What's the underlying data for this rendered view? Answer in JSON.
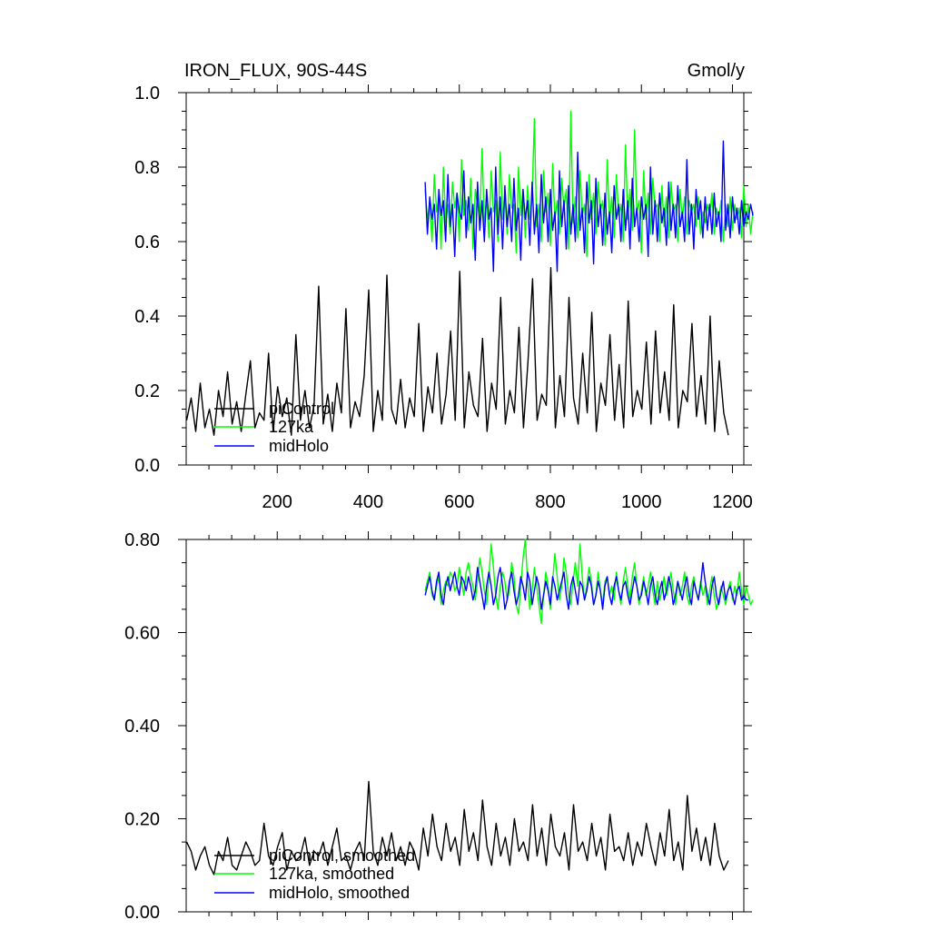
{
  "figure": {
    "title_left": "IRON_FLUX, 90S-44S",
    "title_right": "Gmol/y"
  },
  "chart_data": [
    {
      "type": "line",
      "title": "IRON_FLUX, 90S-44S",
      "units": "Gmol/y",
      "xlim": [
        0,
        1225
      ],
      "ylim": [
        0.0,
        1.0
      ],
      "xticks": [
        200,
        400,
        600,
        800,
        1000,
        1200
      ],
      "xtick_labels": [
        "200",
        "400",
        "600",
        "800",
        "1000",
        "1200"
      ],
      "yticks": [
        0.0,
        0.2,
        0.4,
        0.6,
        0.8,
        1.0
      ],
      "ytick_labels": [
        "0.0",
        "0.2",
        "0.4",
        "0.6",
        "0.8",
        "1.0"
      ],
      "legend": [
        "piControl",
        "127ka",
        "midHolo"
      ],
      "legend_position": "lower-left",
      "series": [
        {
          "name": "piControl",
          "color": "#000000",
          "x_start": 1,
          "x_step": 10,
          "values": [
            0.12,
            0.18,
            0.09,
            0.22,
            0.1,
            0.15,
            0.08,
            0.2,
            0.13,
            0.25,
            0.11,
            0.17,
            0.09,
            0.19,
            0.28,
            0.1,
            0.14,
            0.12,
            0.3,
            0.09,
            0.21,
            0.13,
            0.18,
            0.08,
            0.35,
            0.12,
            0.2,
            0.1,
            0.16,
            0.48,
            0.11,
            0.19,
            0.09,
            0.22,
            0.14,
            0.42,
            0.1,
            0.17,
            0.13,
            0.24,
            0.47,
            0.09,
            0.2,
            0.12,
            0.51,
            0.15,
            0.11,
            0.23,
            0.1,
            0.18,
            0.13,
            0.38,
            0.09,
            0.21,
            0.14,
            0.3,
            0.11,
            0.19,
            0.36,
            0.12,
            0.52,
            0.1,
            0.25,
            0.16,
            0.13,
            0.34,
            0.09,
            0.22,
            0.15,
            0.45,
            0.11,
            0.2,
            0.14,
            0.37,
            0.1,
            0.28,
            0.5,
            0.12,
            0.19,
            0.16,
            0.53,
            0.1,
            0.24,
            0.13,
            0.45,
            0.18,
            0.11,
            0.3,
            0.14,
            0.41,
            0.09,
            0.22,
            0.16,
            0.35,
            0.12,
            0.27,
            0.1,
            0.44,
            0.13,
            0.2,
            0.15,
            0.33,
            0.11,
            0.36,
            0.14,
            0.25,
            0.12,
            0.43,
            0.1,
            0.2,
            0.17,
            0.38,
            0.13,
            0.24,
            0.11,
            0.4,
            0.09,
            0.28,
            0.14,
            0.08
          ]
        },
        {
          "name": "127ka",
          "color": "#00ff00",
          "x_start": 525,
          "x_step": 5,
          "values": [
            0.74,
            0.66,
            0.7,
            0.6,
            0.78,
            0.68,
            0.72,
            0.58,
            0.8,
            0.65,
            0.7,
            0.62,
            0.76,
            0.69,
            0.73,
            0.6,
            0.82,
            0.67,
            0.71,
            0.63,
            0.77,
            0.58,
            0.74,
            0.7,
            0.66,
            0.85,
            0.64,
            0.72,
            0.61,
            0.79,
            0.68,
            0.71,
            0.6,
            0.84,
            0.66,
            0.73,
            0.62,
            0.78,
            0.69,
            0.7,
            0.57,
            0.8,
            0.67,
            0.74,
            0.61,
            0.75,
            0.66,
            0.72,
            0.93,
            0.64,
            0.7,
            0.6,
            0.79,
            0.68,
            0.73,
            0.59,
            0.81,
            0.66,
            0.71,
            0.62,
            0.77,
            0.69,
            0.74,
            0.58,
            0.95,
            0.65,
            0.72,
            0.61,
            0.79,
            0.67,
            0.7,
            0.56,
            0.78,
            0.66,
            0.73,
            0.62,
            0.76,
            0.68,
            0.71,
            0.59,
            0.82,
            0.65,
            0.72,
            0.61,
            0.78,
            0.67,
            0.7,
            0.6,
            0.86,
            0.66,
            0.74,
            0.63,
            0.9,
            0.68,
            0.71,
            0.57,
            0.79,
            0.66,
            0.73,
            0.62,
            0.77,
            0.69,
            0.7,
            0.6,
            0.75,
            0.64,
            0.72,
            0.61,
            0.76,
            0.68,
            0.7,
            0.6,
            0.74,
            0.66,
            0.72,
            0.62,
            0.71,
            0.68,
            0.7,
            0.64,
            0.72,
            0.62,
            0.68,
            0.65,
            0.7,
            0.67,
            0.73,
            0.62,
            0.69,
            0.66,
            0.71,
            0.6,
            0.7,
            0.64,
            0.72,
            0.63,
            0.7,
            0.66,
            0.69,
            0.61,
            0.75,
            0.64,
            0.7,
            0.62,
            0.68
          ]
        },
        {
          "name": "midHolo",
          "color": "#0000ff",
          "x_start": 525,
          "x_step": 5,
          "values": [
            0.76,
            0.62,
            0.72,
            0.66,
            0.7,
            0.58,
            0.74,
            0.67,
            0.71,
            0.6,
            0.78,
            0.64,
            0.7,
            0.56,
            0.73,
            0.68,
            0.66,
            0.79,
            0.61,
            0.72,
            0.65,
            0.7,
            0.55,
            0.76,
            0.63,
            0.71,
            0.6,
            0.74,
            0.66,
            0.69,
            0.52,
            0.8,
            0.62,
            0.72,
            0.58,
            0.75,
            0.64,
            0.7,
            0.6,
            0.77,
            0.63,
            0.69,
            0.55,
            0.74,
            0.66,
            0.71,
            0.59,
            0.76,
            0.62,
            0.7,
            0.57,
            0.78,
            0.65,
            0.72,
            0.6,
            0.74,
            0.63,
            0.68,
            0.52,
            0.79,
            0.64,
            0.71,
            0.58,
            0.75,
            0.62,
            0.7,
            0.6,
            0.84,
            0.63,
            0.69,
            0.57,
            0.76,
            0.65,
            0.71,
            0.54,
            0.77,
            0.64,
            0.7,
            0.59,
            0.73,
            0.62,
            0.68,
            0.57,
            0.75,
            0.66,
            0.7,
            0.6,
            0.74,
            0.63,
            0.71,
            0.58,
            0.77,
            0.64,
            0.69,
            0.6,
            0.72,
            0.66,
            0.7,
            0.56,
            0.8,
            0.62,
            0.71,
            0.6,
            0.73,
            0.65,
            0.69,
            0.59,
            0.76,
            0.63,
            0.7,
            0.61,
            0.75,
            0.64,
            0.68,
            0.6,
            0.82,
            0.62,
            0.7,
            0.58,
            0.74,
            0.66,
            0.71,
            0.61,
            0.72,
            0.63,
            0.7,
            0.62,
            0.73,
            0.64,
            0.68,
            0.6,
            0.87,
            0.63,
            0.7,
            0.61,
            0.72,
            0.65,
            0.69,
            0.62,
            0.71,
            0.64,
            0.68,
            0.66,
            0.7,
            0.67
          ]
        }
      ]
    },
    {
      "type": "line",
      "xlim": [
        0,
        1225
      ],
      "ylim": [
        0.0,
        0.8
      ],
      "xticks": [
        200,
        400,
        600,
        800,
        1000,
        1200
      ],
      "yticks": [
        0.0,
        0.2,
        0.4,
        0.6,
        0.8
      ],
      "ytick_labels": [
        "0.00",
        "0.20",
        "0.40",
        "0.60",
        "0.80"
      ],
      "legend": [
        "piControl, smoothed",
        "127ka, smoothed",
        "midHolo, smoothed"
      ],
      "legend_position": "lower-left",
      "series": [
        {
          "name": "piControl, smoothed",
          "color": "#000000",
          "x_start": 1,
          "x_step": 10,
          "values": [
            0.15,
            0.13,
            0.09,
            0.12,
            0.14,
            0.1,
            0.08,
            0.13,
            0.11,
            0.16,
            0.1,
            0.09,
            0.12,
            0.15,
            0.13,
            0.1,
            0.11,
            0.19,
            0.12,
            0.1,
            0.14,
            0.17,
            0.09,
            0.13,
            0.11,
            0.12,
            0.16,
            0.1,
            0.13,
            0.12,
            0.15,
            0.1,
            0.14,
            0.18,
            0.11,
            0.12,
            0.09,
            0.13,
            0.15,
            0.11,
            0.28,
            0.13,
            0.1,
            0.16,
            0.12,
            0.17,
            0.11,
            0.14,
            0.1,
            0.15,
            0.13,
            0.09,
            0.18,
            0.12,
            0.21,
            0.14,
            0.11,
            0.19,
            0.13,
            0.16,
            0.1,
            0.22,
            0.13,
            0.17,
            0.11,
            0.24,
            0.14,
            0.1,
            0.19,
            0.12,
            0.16,
            0.1,
            0.2,
            0.13,
            0.15,
            0.11,
            0.23,
            0.12,
            0.18,
            0.1,
            0.21,
            0.14,
            0.12,
            0.17,
            0.09,
            0.23,
            0.13,
            0.15,
            0.11,
            0.19,
            0.12,
            0.16,
            0.09,
            0.21,
            0.13,
            0.14,
            0.11,
            0.17,
            0.1,
            0.15,
            0.12,
            0.19,
            0.14,
            0.1,
            0.17,
            0.12,
            0.22,
            0.11,
            0.15,
            0.09,
            0.25,
            0.13,
            0.18,
            0.11,
            0.16,
            0.1,
            0.19,
            0.12,
            0.09,
            0.11
          ]
        },
        {
          "name": "127ka, smoothed",
          "color": "#00ff00",
          "x_start": 525,
          "x_step": 5,
          "values": [
            0.69,
            0.71,
            0.73,
            0.68,
            0.67,
            0.7,
            0.72,
            0.66,
            0.69,
            0.71,
            0.7,
            0.73,
            0.72,
            0.69,
            0.7,
            0.74,
            0.71,
            0.68,
            0.73,
            0.75,
            0.72,
            0.7,
            0.67,
            0.71,
            0.76,
            0.73,
            0.69,
            0.66,
            0.72,
            0.79,
            0.74,
            0.68,
            0.65,
            0.7,
            0.73,
            0.71,
            0.67,
            0.69,
            0.75,
            0.72,
            0.66,
            0.64,
            0.7,
            0.76,
            0.8,
            0.71,
            0.65,
            0.69,
            0.74,
            0.7,
            0.66,
            0.62,
            0.68,
            0.73,
            0.7,
            0.65,
            0.71,
            0.77,
            0.72,
            0.67,
            0.7,
            0.76,
            0.73,
            0.68,
            0.66,
            0.71,
            0.75,
            0.7,
            0.79,
            0.72,
            0.67,
            0.7,
            0.74,
            0.71,
            0.66,
            0.68,
            0.73,
            0.69,
            0.66,
            0.71,
            0.72,
            0.68,
            0.7,
            0.67,
            0.73,
            0.69,
            0.66,
            0.71,
            0.74,
            0.7,
            0.67,
            0.72,
            0.75,
            0.7,
            0.66,
            0.69,
            0.72,
            0.68,
            0.7,
            0.73,
            0.69,
            0.66,
            0.71,
            0.67,
            0.69,
            0.72,
            0.68,
            0.7,
            0.73,
            0.69,
            0.66,
            0.71,
            0.68,
            0.7,
            0.73,
            0.68,
            0.66,
            0.7,
            0.72,
            0.69,
            0.67,
            0.71,
            0.68,
            0.7,
            0.66,
            0.69,
            0.72,
            0.68,
            0.65,
            0.67,
            0.7,
            0.68,
            0.66,
            0.69,
            0.71,
            0.67,
            0.7,
            0.68,
            0.73,
            0.69,
            0.66,
            0.7,
            0.68,
            0.66,
            0.67
          ]
        },
        {
          "name": "midHolo, smoothed",
          "color": "#0000ff",
          "x_start": 525,
          "x_step": 5,
          "values": [
            0.68,
            0.7,
            0.72,
            0.69,
            0.67,
            0.71,
            0.73,
            0.68,
            0.66,
            0.7,
            0.72,
            0.69,
            0.71,
            0.73,
            0.7,
            0.68,
            0.72,
            0.71,
            0.69,
            0.72,
            0.7,
            0.67,
            0.69,
            0.74,
            0.71,
            0.68,
            0.65,
            0.7,
            0.73,
            0.7,
            0.66,
            0.68,
            0.72,
            0.74,
            0.7,
            0.65,
            0.67,
            0.71,
            0.73,
            0.69,
            0.66,
            0.68,
            0.72,
            0.7,
            0.67,
            0.73,
            0.71,
            0.66,
            0.69,
            0.72,
            0.7,
            0.65,
            0.68,
            0.71,
            0.69,
            0.66,
            0.72,
            0.7,
            0.67,
            0.69,
            0.71,
            0.73,
            0.68,
            0.65,
            0.7,
            0.72,
            0.69,
            0.66,
            0.71,
            0.7,
            0.67,
            0.69,
            0.72,
            0.7,
            0.66,
            0.68,
            0.71,
            0.69,
            0.65,
            0.7,
            0.72,
            0.68,
            0.66,
            0.7,
            0.72,
            0.69,
            0.67,
            0.7,
            0.71,
            0.68,
            0.66,
            0.69,
            0.72,
            0.7,
            0.67,
            0.68,
            0.71,
            0.69,
            0.66,
            0.7,
            0.72,
            0.68,
            0.66,
            0.69,
            0.71,
            0.67,
            0.69,
            0.72,
            0.7,
            0.66,
            0.68,
            0.71,
            0.69,
            0.67,
            0.7,
            0.72,
            0.68,
            0.66,
            0.71,
            0.69,
            0.67,
            0.7,
            0.75,
            0.71,
            0.68,
            0.66,
            0.7,
            0.72,
            0.68,
            0.66,
            0.69,
            0.71,
            0.67,
            0.69,
            0.7,
            0.68,
            0.66,
            0.69,
            0.7,
            0.67,
            0.68,
            0.67,
            0.67
          ]
        }
      ]
    }
  ]
}
